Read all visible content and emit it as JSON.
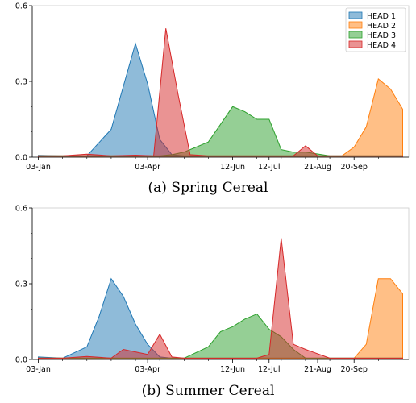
{
  "chart_data": [
    {
      "type": "area",
      "caption": "(a) Spring Cereal",
      "xlabel": "",
      "ylabel": "",
      "ylim": [
        0,
        0.6
      ],
      "y_ticks": [
        0.0,
        0.3,
        0.6
      ],
      "y_tick_labels": [
        "0.0",
        "0.3",
        "0.6"
      ],
      "x_ticks": [
        0,
        90,
        160,
        190,
        230,
        260
      ],
      "x_tick_labels": [
        "03-Jan",
        "03-Apr",
        "12-Jun",
        "12-Jul",
        "21-Aug",
        "20-Sep"
      ],
      "xlim": [
        -5,
        305
      ],
      "legend_position": "top-right",
      "series": [
        {
          "name": "HEAD 1",
          "color": "#1f77b4",
          "x": [
            0,
            20,
            40,
            60,
            80,
            90,
            100,
            110,
            120,
            130,
            140,
            160,
            180,
            200,
            220,
            240,
            260,
            280,
            300
          ],
          "y": [
            0.007,
            0.005,
            0.005,
            0.11,
            0.45,
            0.29,
            0.07,
            0.01,
            0.005,
            0.005,
            0.005,
            0.005,
            0.005,
            0.005,
            0.005,
            0.005,
            0.005,
            0.005,
            0.005
          ]
        },
        {
          "name": "HEAD 2",
          "color": "#ff7f0e",
          "x": [
            0,
            20,
            40,
            60,
            80,
            100,
            120,
            140,
            160,
            180,
            200,
            220,
            240,
            250,
            260,
            270,
            280,
            290,
            300
          ],
          "y": [
            0.005,
            0.005,
            0.005,
            0.005,
            0.005,
            0.005,
            0.005,
            0.005,
            0.005,
            0.005,
            0.005,
            0.005,
            0.005,
            0.005,
            0.04,
            0.12,
            0.31,
            0.27,
            0.19
          ]
        },
        {
          "name": "HEAD 3",
          "color": "#2ca02c",
          "x": [
            0,
            20,
            40,
            60,
            80,
            100,
            110,
            120,
            130,
            140,
            150,
            160,
            170,
            180,
            190,
            200,
            210,
            220,
            240,
            260,
            280,
            300
          ],
          "y": [
            0.005,
            0.005,
            0.005,
            0.005,
            0.005,
            0.005,
            0.01,
            0.02,
            0.04,
            0.06,
            0.13,
            0.2,
            0.18,
            0.15,
            0.15,
            0.03,
            0.02,
            0.02,
            0.005,
            0.005,
            0.005,
            0.005
          ]
        },
        {
          "name": "HEAD 4",
          "color": "#d62728",
          "x": [
            0,
            20,
            40,
            60,
            80,
            95,
            105,
            115,
            125,
            140,
            160,
            180,
            200,
            210,
            220,
            230,
            240,
            260,
            280,
            300
          ],
          "y": [
            0.005,
            0.005,
            0.012,
            0.005,
            0.008,
            0.005,
            0.51,
            0.25,
            0.01,
            0.005,
            0.005,
            0.005,
            0.005,
            0.005,
            0.045,
            0.005,
            0.005,
            0.005,
            0.005,
            0.005
          ]
        }
      ]
    },
    {
      "type": "area",
      "caption": "(b) Summer Cereal",
      "xlabel": "",
      "ylabel": "",
      "ylim": [
        0,
        0.6
      ],
      "y_ticks": [
        0.0,
        0.3,
        0.6
      ],
      "y_tick_labels": [
        "0.0",
        "0.3",
        "0.6"
      ],
      "x_ticks": [
        0,
        90,
        160,
        190,
        230,
        260
      ],
      "x_tick_labels": [
        "03-Jan",
        "03-Apr",
        "12-Jun",
        "12-Jul",
        "21-Aug",
        "20-Sep"
      ],
      "xlim": [
        -5,
        305
      ],
      "series": [
        {
          "name": "HEAD 1",
          "color": "#1f77b4",
          "x": [
            0,
            20,
            40,
            50,
            60,
            70,
            80,
            90,
            100,
            110,
            120,
            140,
            160,
            180,
            200,
            220,
            240,
            260,
            280,
            300
          ],
          "y": [
            0.01,
            0.005,
            0.05,
            0.17,
            0.32,
            0.25,
            0.14,
            0.06,
            0.01,
            0.005,
            0.005,
            0.005,
            0.005,
            0.005,
            0.005,
            0.005,
            0.005,
            0.005,
            0.005,
            0.005
          ]
        },
        {
          "name": "HEAD 2",
          "color": "#ff7f0e",
          "x": [
            0,
            20,
            40,
            60,
            80,
            100,
            120,
            140,
            160,
            180,
            200,
            220,
            240,
            250,
            260,
            270,
            280,
            290,
            300
          ],
          "y": [
            0.005,
            0.005,
            0.005,
            0.005,
            0.005,
            0.005,
            0.005,
            0.005,
            0.005,
            0.005,
            0.005,
            0.005,
            0.005,
            0.005,
            0.005,
            0.06,
            0.32,
            0.32,
            0.26
          ]
        },
        {
          "name": "HEAD 3",
          "color": "#2ca02c",
          "x": [
            0,
            20,
            40,
            60,
            80,
            100,
            120,
            140,
            150,
            160,
            170,
            180,
            190,
            200,
            210,
            220,
            240,
            260,
            280,
            300
          ],
          "y": [
            0.005,
            0.005,
            0.005,
            0.005,
            0.005,
            0.005,
            0.005,
            0.05,
            0.11,
            0.13,
            0.16,
            0.18,
            0.12,
            0.09,
            0.04,
            0.005,
            0.005,
            0.005,
            0.005,
            0.005
          ]
        },
        {
          "name": "HEAD 4",
          "color": "#d62728",
          "x": [
            0,
            20,
            40,
            60,
            70,
            80,
            90,
            100,
            110,
            120,
            140,
            160,
            180,
            190,
            200,
            210,
            220,
            240,
            260,
            280,
            300
          ],
          "y": [
            0.005,
            0.005,
            0.012,
            0.005,
            0.04,
            0.03,
            0.02,
            0.1,
            0.01,
            0.005,
            0.005,
            0.005,
            0.005,
            0.02,
            0.48,
            0.06,
            0.04,
            0.005,
            0.005,
            0.005,
            0.005
          ]
        }
      ]
    }
  ]
}
